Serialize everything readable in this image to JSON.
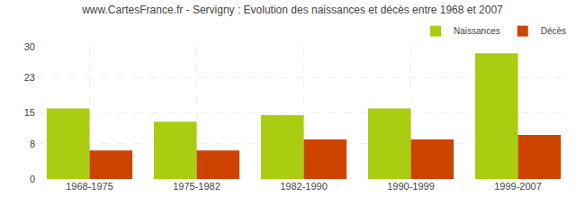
{
  "chart_data": {
    "type": "bar",
    "title": "www.CartesFrance.fr - Servigny : Evolution des naissances et décès entre 1968 et 2007",
    "categories": [
      "1968-1975",
      "1975-1982",
      "1982-1990",
      "1990-1999",
      "1999-2007"
    ],
    "series": [
      {
        "name": "Naissances",
        "color": "#aacc11",
        "values": [
          16,
          13,
          14.5,
          16,
          28.5
        ]
      },
      {
        "name": "Décès",
        "color": "#cc4400",
        "values": [
          6.5,
          6.5,
          9,
          9,
          10
        ]
      }
    ],
    "ylim": [
      0,
      30
    ],
    "yticks": [
      0,
      8,
      15,
      23,
      30
    ],
    "grid": true,
    "legend": "upper right"
  }
}
